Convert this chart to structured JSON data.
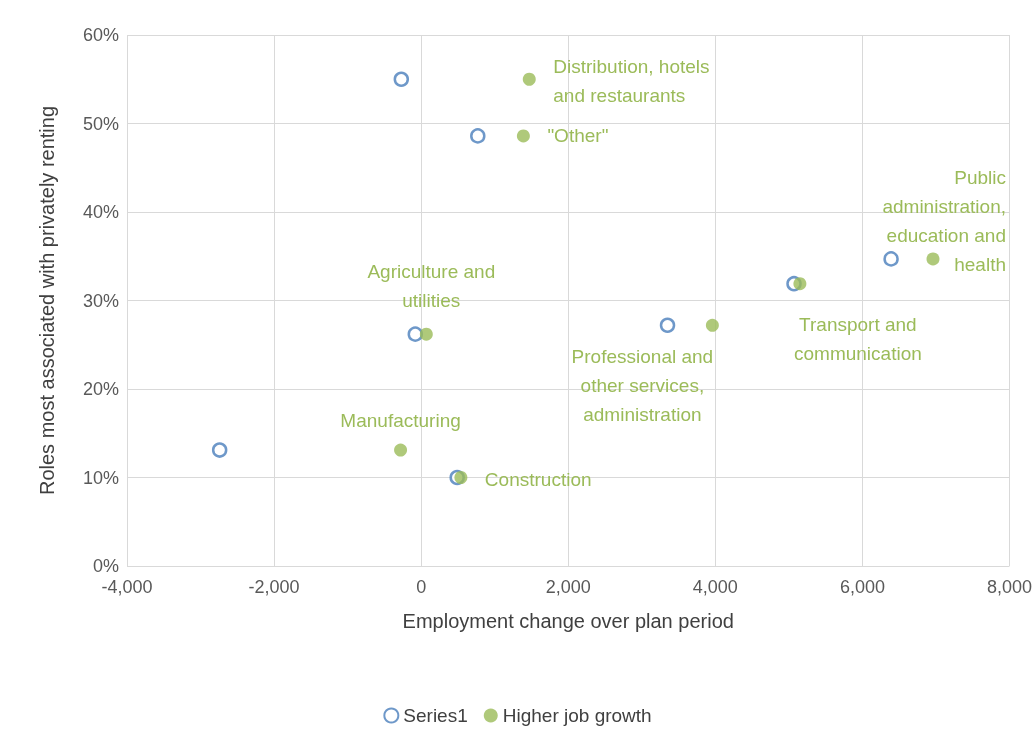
{
  "chart_data": {
    "type": "scatter",
    "xlabel": "Employment change over plan period",
    "ylabel": "Roles most associated with privately renting",
    "xlim": [
      -4000,
      8000
    ],
    "xticks": [
      {
        "value": -4000,
        "label": "-4,000"
      },
      {
        "value": -2000,
        "label": "-2,000"
      },
      0,
      {
        "value": 2000,
        "label": "2,000"
      },
      {
        "value": 4000,
        "label": "4,000"
      },
      {
        "value": 6000,
        "label": "6,000"
      },
      {
        "value": 8000,
        "label": "8,000"
      }
    ],
    "ylim": [
      0,
      60
    ],
    "yticks": [
      {
        "value": 0,
        "label": "0%"
      },
      {
        "value": 10,
        "label": "10%"
      },
      {
        "value": 20,
        "label": "20%"
      },
      {
        "value": 30,
        "label": "30%"
      },
      {
        "value": 40,
        "label": "40%"
      },
      {
        "value": 50,
        "label": "50%"
      },
      {
        "value": 60,
        "label": "60%"
      }
    ],
    "grid": true,
    "legend": "bottom",
    "series": [
      {
        "name": "Series1",
        "color": "#4a7ebb",
        "marker": "circle",
        "x": [
          -270,
          770,
          -80,
          -2740,
          490,
          3350,
          5070,
          6390
        ],
        "values": [
          55.0,
          48.6,
          26.2,
          13.1,
          10.0,
          27.2,
          31.9,
          34.7
        ]
      },
      {
        "name": "Higher job growth",
        "color": "#9bbb59",
        "marker": "circle",
        "x": [
          1470,
          1390,
          70,
          -280,
          540,
          3960,
          5150,
          6960
        ],
        "values": [
          55.0,
          48.6,
          26.2,
          13.1,
          10.0,
          27.2,
          31.9,
          34.7
        ]
      }
    ],
    "annotations": [
      {
        "text": "Distribution, hotels\nand restaurants",
        "x": 1470,
        "y": 55.0
      },
      {
        "text": "\"Other\"",
        "x": 1390,
        "y": 48.6
      },
      {
        "text": "Agriculture and\nutilities",
        "x": 70,
        "y": 26.2
      },
      {
        "text": "Manufacturing",
        "x": -280,
        "y": 13.1
      },
      {
        "text": "Construction",
        "x": 540,
        "y": 10.0
      },
      {
        "text": "Professional and\nother services,\nadministration",
        "x": 3960,
        "y": 27.2
      },
      {
        "text": "Transport and\ncommunication",
        "x": 5150,
        "y": 31.9
      },
      {
        "text": "Public\nadministration,\neducation and\nhealth",
        "x": 6960,
        "y": 34.7
      }
    ]
  }
}
